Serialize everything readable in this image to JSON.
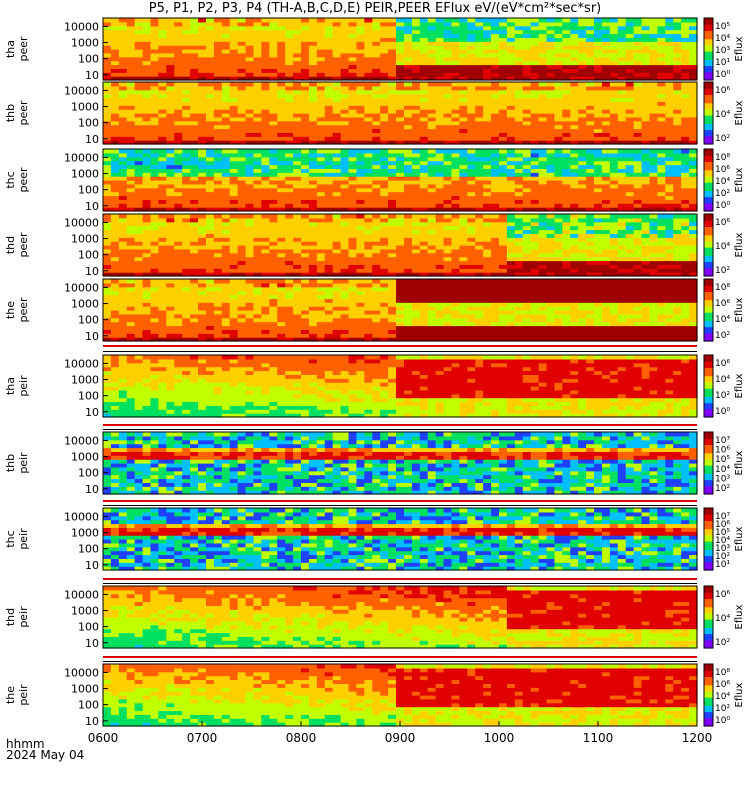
{
  "title": "P5, P1, P2, P3, P4 (TH-A,B,C,D,E) PEIR,PEER EFlux eV/(eV*cm²*sec*sr)",
  "footer": {
    "label_line1": "hhmm",
    "label_line2": "2024 May 04"
  },
  "chart_data": {
    "type": "heatmap",
    "x_ticks": [
      "0600",
      "0700",
      "0800",
      "0900",
      "1000",
      "1100",
      "1200"
    ],
    "x_range": [
      "0600",
      "1200"
    ],
    "y_ticks": [
      "10",
      "100",
      "1000",
      "10000"
    ],
    "y_scale": "log",
    "colorbar_label": "Eflux",
    "colormap": [
      "#7f00ff",
      "#2040ff",
      "#00c0ff",
      "#00e060",
      "#c0ff00",
      "#ffd000",
      "#ff6000",
      "#e00000",
      "#a00000"
    ],
    "panels": [
      {
        "label": [
          "tha",
          "peer"
        ],
        "cbar_ticks": [
          "10⁵",
          "10⁴",
          "10³",
          "10¹",
          "10⁰"
        ],
        "feature": {
          "kind": "electron",
          "transition": "0900",
          "bg_after": 0.25,
          "band_after": 0.9
        }
      },
      {
        "label": [
          "thb",
          "peer"
        ],
        "cbar_ticks": [
          "10⁶",
          "10⁴",
          "10²"
        ],
        "feature": {
          "kind": "electron",
          "transition": null
        }
      },
      {
        "label": [
          "thc",
          "peer"
        ],
        "cbar_ticks": [
          "10⁸",
          "10⁶",
          "10⁴",
          "10²",
          "10⁰"
        ],
        "feature": {
          "kind": "electron-quiet",
          "transition": null
        }
      },
      {
        "label": [
          "thd",
          "peer"
        ],
        "cbar_ticks": [
          "10⁶",
          "10⁴",
          "10²"
        ],
        "feature": {
          "kind": "electron",
          "transition": "1005",
          "bg_after": 0.3,
          "band_after": 0.9
        }
      },
      {
        "label": [
          "the",
          "peer"
        ],
        "cbar_ticks": [
          "10⁸",
          "10⁶",
          "10⁴",
          "10²"
        ],
        "feature": {
          "kind": "electron",
          "transition": "0900",
          "bg_after": 0.95,
          "band_after": 1.0
        }
      },
      {
        "label": [
          "tha",
          "peir"
        ],
        "cbar_ticks": [
          "10⁶",
          "10⁴",
          "10²",
          "10⁰"
        ],
        "feature": {
          "kind": "ion",
          "transition": "0900"
        }
      },
      {
        "label": [
          "thb",
          "peir"
        ],
        "cbar_ticks": [
          "10⁷",
          "10⁶",
          "10⁵",
          "10⁴",
          "10³",
          "10²"
        ],
        "feature": {
          "kind": "ion-sparse",
          "transition": null
        }
      },
      {
        "label": [
          "thc",
          "peir"
        ],
        "cbar_ticks": [
          "10⁷",
          "10⁶",
          "10⁵",
          "10⁴",
          "10³",
          "10²",
          "10¹"
        ],
        "feature": {
          "kind": "ion-sparse",
          "transition": null
        }
      },
      {
        "label": [
          "thd",
          "peir"
        ],
        "cbar_ticks": [
          "10⁶",
          "10⁴",
          "10²"
        ],
        "feature": {
          "kind": "ion",
          "transition": "1005"
        }
      },
      {
        "label": [
          "the",
          "peir"
        ],
        "cbar_ticks": [
          "10⁸",
          "10⁶",
          "10⁴",
          "10²",
          "10⁰"
        ],
        "feature": {
          "kind": "ion",
          "transition": "0900"
        }
      }
    ]
  }
}
